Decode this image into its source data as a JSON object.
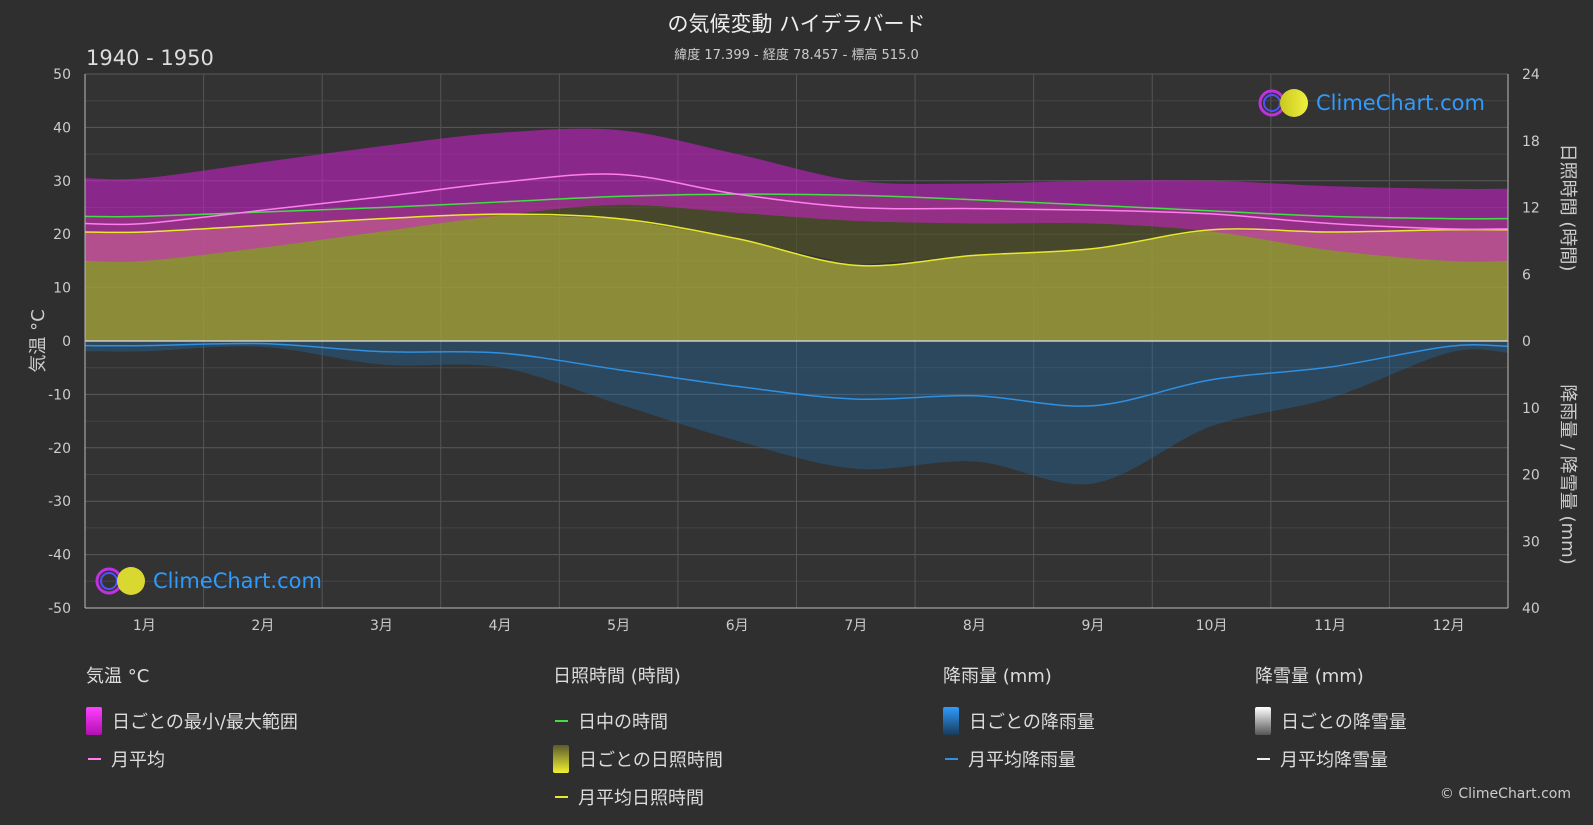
{
  "header": {
    "title": "の気候変動 ハイデラバード",
    "subtitle": "緯度 17.399 - 経度 78.457 - 標高 515.0",
    "period": "1940 - 1950"
  },
  "brand": {
    "name": "ClimeChart.com",
    "copyright": "© ClimeChart.com"
  },
  "colors": {
    "background": "#2f2f2f",
    "temp_range": "#d21ed2",
    "temp_avg": "#ff7ff0",
    "daylight": "#44dd44",
    "sunshine_fill": "#9c9c3a",
    "sunshine_avg": "#e8e830",
    "rain": "#1f6fb0",
    "rain_avg": "#2f8fe0",
    "brand": "#2e9bff"
  },
  "chart_data": {
    "type": "line",
    "categories": [
      "1月",
      "2月",
      "3月",
      "4月",
      "5月",
      "6月",
      "7月",
      "8月",
      "9月",
      "10月",
      "11月",
      "12月"
    ],
    "axes": {
      "left": {
        "label": "気温 °C",
        "range": [
          -50,
          50
        ],
        "ticks": [
          "50",
          "40",
          "30",
          "20",
          "10",
          "0",
          "-10",
          "-20",
          "-30",
          "-40",
          "-50"
        ]
      },
      "right_top": {
        "label": "日照時間 (時間)",
        "range": [
          0,
          24
        ],
        "ticks": [
          "24",
          "18",
          "12",
          "6",
          "0"
        ]
      },
      "right_bottom": {
        "label": "降雨量 / 降雪量 (mm)",
        "range": [
          0,
          40
        ],
        "ticks": [
          "0",
          "10",
          "20",
          "30",
          "40"
        ]
      }
    },
    "series": {
      "temp_max_avg": [
        30.5,
        33.5,
        36.5,
        39.0,
        39.5,
        35.0,
        30.0,
        29.5,
        30.0,
        30.0,
        29.0,
        28.5
      ],
      "temp_min_avg": [
        15.0,
        17.5,
        20.5,
        23.5,
        25.5,
        24.0,
        22.5,
        22.0,
        22.0,
        20.5,
        17.0,
        15.0
      ],
      "temp_monthly_avg": [
        22.0,
        24.5,
        27.0,
        29.7,
        31.2,
        27.5,
        25.0,
        24.8,
        24.5,
        23.8,
        22.0,
        21.0
      ],
      "daylight_hours": [
        11.2,
        11.6,
        12.0,
        12.5,
        13.0,
        13.2,
        13.1,
        12.7,
        12.2,
        11.7,
        11.2,
        11.0
      ],
      "sunshine_hours": [
        9.8,
        10.4,
        11.0,
        11.4,
        11.0,
        9.2,
        6.8,
        7.7,
        8.3,
        10.0,
        9.8,
        10.0
      ],
      "rain_mm": [
        0.7,
        0.4,
        1.6,
        1.8,
        4.3,
        6.8,
        8.7,
        8.2,
        9.7,
        5.8,
        3.9,
        0.8
      ],
      "snow_mm": [
        0,
        0,
        0,
        0,
        0,
        0,
        0,
        0,
        0,
        0,
        0,
        0
      ]
    },
    "grid": true
  },
  "legend": {
    "temperature": {
      "title": "気温 °C",
      "items": [
        "日ごとの最小/最大範囲",
        "月平均"
      ]
    },
    "sunshine": {
      "title": "日照時間 (時間)",
      "items": [
        "日中の時間",
        "日ごとの日照時間",
        "月平均日照時間"
      ]
    },
    "rain": {
      "title": "降雨量 (mm)",
      "items": [
        "日ごとの降雨量",
        "月平均降雨量"
      ]
    },
    "snow": {
      "title": "降雪量 (mm)",
      "items": [
        "日ごとの降雪量",
        "月平均降雪量"
      ]
    }
  }
}
